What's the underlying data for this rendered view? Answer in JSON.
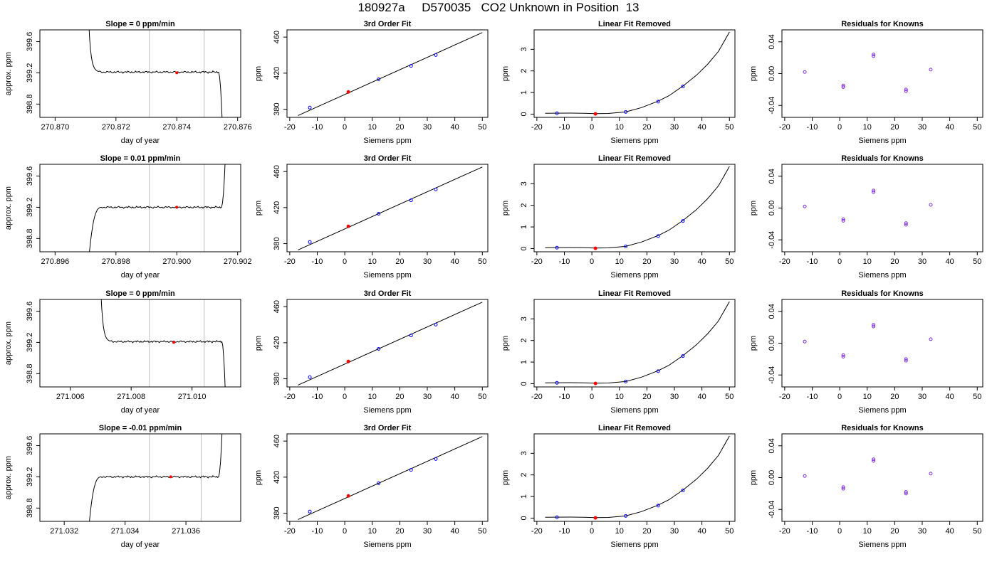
{
  "title": "180927a     D570035   CO2 Unknown in Position  13",
  "colors": {
    "line": "#000000",
    "known_point": "#0000ff",
    "unknown_point": "#ff0000",
    "residual_point": "#7b2be2",
    "marker_line": "#bebebe"
  },
  "chart_data": [
    {
      "type": "line",
      "title": "Slope =  0  ppm/min",
      "xlabel": "day of year",
      "ylabel": "approx. ppm",
      "xlim": [
        270.8695,
        270.8761
      ],
      "ylim": [
        398.63,
        399.75
      ],
      "xticks": [
        270.87,
        270.872,
        270.874,
        270.876
      ],
      "xtick_labels": [
        "270.870",
        "270.872",
        "270.874",
        "270.876"
      ],
      "yticks": [
        398.8,
        399.2,
        399.6
      ],
      "ytick_labels": [
        "398.8",
        "399.2",
        "399.6"
      ],
      "vlines": [
        270.8731,
        270.8749
      ],
      "trace_start": 270.8711,
      "trace_end": 270.8755,
      "level": 399.21,
      "start_from": 399.9,
      "end_to": 398.5,
      "marker": {
        "x": 270.874,
        "y": 399.2
      }
    },
    {
      "type": "scatter",
      "title": "3rd Order Fit",
      "xlabel": "Siemens ppm",
      "ylabel": "ppm",
      "xlim": [
        -21,
        52
      ],
      "ylim": [
        371,
        468
      ],
      "xticks": [
        -20,
        -10,
        0,
        10,
        20,
        30,
        40,
        50
      ],
      "xtick_labels": [
        "-20",
        "-10",
        "0",
        "10",
        "20",
        "30",
        "40",
        "50"
      ],
      "yticks": [
        380,
        420,
        460
      ],
      "ytick_labels": [
        "380",
        "420",
        "460"
      ],
      "fit_line": [
        [
          -17,
          373
        ],
        [
          50,
          465
        ]
      ],
      "known_points": [
        [
          -12.7,
          381.8
        ],
        [
          12.3,
          413.2
        ],
        [
          24.1,
          428.1
        ],
        [
          33.1,
          440.1
        ]
      ],
      "unknown_points": [
        [
          1.3,
          399.2
        ]
      ]
    },
    {
      "type": "scatter",
      "title": "Linear Fit Removed",
      "xlabel": "Siemens ppm",
      "ylabel": "ppm",
      "xlim": [
        -21,
        52
      ],
      "ylim": [
        -0.15,
        3.9
      ],
      "xticks": [
        -20,
        -10,
        0,
        10,
        20,
        30,
        40,
        50
      ],
      "xtick_labels": [
        "-20",
        "-10",
        "0",
        "10",
        "20",
        "30",
        "40",
        "50"
      ],
      "yticks": [
        0,
        1,
        2,
        3
      ],
      "ytick_labels": [
        "0",
        "1",
        "2",
        "3"
      ],
      "fit_curve": [
        [
          -17,
          0.04
        ],
        [
          -12.7,
          0.045
        ],
        [
          -8,
          0.048
        ],
        [
          -3,
          0.04
        ],
        [
          1.3,
          0.02
        ],
        [
          6,
          0.03
        ],
        [
          12.3,
          0.1
        ],
        [
          18,
          0.3
        ],
        [
          24.1,
          0.6
        ],
        [
          28,
          0.85
        ],
        [
          33.1,
          1.3
        ],
        [
          38,
          1.8
        ],
        [
          42,
          2.3
        ],
        [
          46,
          2.9
        ],
        [
          50,
          3.8
        ]
      ],
      "known_points": [
        [
          -12.7,
          0.04
        ],
        [
          12.3,
          0.1
        ],
        [
          24.1,
          0.58
        ],
        [
          33.1,
          1.28
        ]
      ],
      "unknown_points": [
        [
          1.3,
          0.01
        ]
      ]
    },
    {
      "type": "scatter",
      "title": "Residuals for Knowns",
      "xlabel": "Siemens ppm",
      "ylabel": "ppm",
      "xlim": [
        -21,
        52
      ],
      "ylim": [
        -0.055,
        0.055
      ],
      "xticks": [
        -20,
        -10,
        0,
        10,
        20,
        30,
        40,
        50
      ],
      "xtick_labels": [
        "-20",
        "-10",
        "0",
        "10",
        "20",
        "30",
        "40",
        "50"
      ],
      "yticks": [
        -0.04,
        0,
        0.04
      ],
      "ytick_labels": [
        "-0.04",
        "0.00",
        "0.04"
      ],
      "points": [
        [
          -12.7,
          0.002
        ],
        [
          1.3,
          -0.015
        ],
        [
          1.3,
          -0.017
        ],
        [
          12.3,
          0.022
        ],
        [
          12.3,
          0.024
        ],
        [
          24.1,
          -0.02
        ],
        [
          24.1,
          -0.022
        ],
        [
          33.1,
          0.005
        ]
      ]
    },
    {
      "type": "line",
      "title": "Slope =  0.01  ppm/min",
      "xlabel": "day of year",
      "ylabel": "approx. ppm",
      "xlim": [
        270.8955,
        270.9021
      ],
      "ylim": [
        398.63,
        399.75
      ],
      "xticks": [
        270.896,
        270.898,
        270.9,
        270.902
      ],
      "xtick_labels": [
        "270.896",
        "270.898",
        "270.900",
        "270.902"
      ],
      "yticks": [
        398.8,
        399.2,
        399.6
      ],
      "ytick_labels": [
        "398.8",
        "399.2",
        "399.6"
      ],
      "vlines": [
        270.8991,
        270.9009
      ],
      "trace_start": 270.8971,
      "trace_end": 270.9016,
      "level": 399.2,
      "start_from": 398.5,
      "end_to": 399.9,
      "marker": {
        "x": 270.9,
        "y": 399.2
      }
    },
    {
      "type": "scatter",
      "title": "3rd Order Fit",
      "xlabel": "Siemens ppm",
      "ylabel": "ppm",
      "xlim": [
        -21,
        52
      ],
      "ylim": [
        371,
        468
      ],
      "xticks": [
        -20,
        -10,
        0,
        10,
        20,
        30,
        40,
        50
      ],
      "xtick_labels": [
        "-20",
        "-10",
        "0",
        "10",
        "20",
        "30",
        "40",
        "50"
      ],
      "yticks": [
        380,
        420,
        460
      ],
      "ytick_labels": [
        "380",
        "420",
        "460"
      ],
      "fit_line": [
        [
          -17,
          373
        ],
        [
          50,
          465
        ]
      ],
      "known_points": [
        [
          -12.7,
          381.8
        ],
        [
          12.3,
          413.2
        ],
        [
          24.1,
          428.1
        ],
        [
          33.1,
          440.1
        ]
      ],
      "unknown_points": [
        [
          1.3,
          399.2
        ]
      ]
    },
    {
      "type": "scatter",
      "title": "Linear Fit Removed",
      "xlabel": "Siemens ppm",
      "ylabel": "ppm",
      "xlim": [
        -21,
        52
      ],
      "ylim": [
        -0.15,
        3.9
      ],
      "xticks": [
        -20,
        -10,
        0,
        10,
        20,
        30,
        40,
        50
      ],
      "xtick_labels": [
        "-20",
        "-10",
        "0",
        "10",
        "20",
        "30",
        "40",
        "50"
      ],
      "yticks": [
        0,
        1,
        2,
        3
      ],
      "ytick_labels": [
        "0",
        "1",
        "2",
        "3"
      ],
      "fit_curve": [
        [
          -17,
          0.04
        ],
        [
          -12.7,
          0.045
        ],
        [
          -8,
          0.048
        ],
        [
          -3,
          0.04
        ],
        [
          1.3,
          0.02
        ],
        [
          6,
          0.03
        ],
        [
          12.3,
          0.1
        ],
        [
          18,
          0.3
        ],
        [
          24.1,
          0.6
        ],
        [
          28,
          0.85
        ],
        [
          33.1,
          1.3
        ],
        [
          38,
          1.8
        ],
        [
          42,
          2.3
        ],
        [
          46,
          2.9
        ],
        [
          50,
          3.8
        ]
      ],
      "known_points": [
        [
          -12.7,
          0.04
        ],
        [
          12.3,
          0.1
        ],
        [
          24.1,
          0.58
        ],
        [
          33.1,
          1.28
        ]
      ],
      "unknown_points": [
        [
          1.3,
          0.01
        ]
      ]
    },
    {
      "type": "scatter",
      "title": "Residuals for Knowns",
      "xlabel": "Siemens ppm",
      "ylabel": "ppm",
      "xlim": [
        -21,
        52
      ],
      "ylim": [
        -0.055,
        0.055
      ],
      "xticks": [
        -20,
        -10,
        0,
        10,
        20,
        30,
        40,
        50
      ],
      "xtick_labels": [
        "-20",
        "-10",
        "0",
        "10",
        "20",
        "30",
        "40",
        "50"
      ],
      "yticks": [
        -0.04,
        0,
        0.04
      ],
      "ytick_labels": [
        "-0.04",
        "0.00",
        "0.04"
      ],
      "points": [
        [
          -12.7,
          0.002
        ],
        [
          1.3,
          -0.014
        ],
        [
          1.3,
          -0.016
        ],
        [
          12.3,
          0.02
        ],
        [
          12.3,
          0.022
        ],
        [
          24.1,
          -0.019
        ],
        [
          24.1,
          -0.021
        ],
        [
          33.1,
          0.004
        ]
      ]
    },
    {
      "type": "line",
      "title": "Slope =  0  ppm/min",
      "xlabel": "day of year",
      "ylabel": "approx. ppm",
      "xlim": [
        271.005,
        271.0116
      ],
      "ylim": [
        398.63,
        399.75
      ],
      "xticks": [
        271.006,
        271.008,
        271.01
      ],
      "xtick_labels": [
        "271.006",
        "271.008",
        "271.010"
      ],
      "vlines": [
        271.0086,
        271.0104
      ],
      "trace_start": 271.007,
      "trace_end": 271.0111,
      "level": 399.21,
      "yticks": [
        398.8,
        399.2,
        399.6
      ],
      "ytick_labels": [
        "398.8",
        "399.2",
        "399.6"
      ],
      "start_from": 399.9,
      "end_to": 398.5,
      "marker": {
        "x": 271.0094,
        "y": 399.2
      }
    },
    {
      "type": "scatter",
      "title": "3rd Order Fit",
      "xlabel": "Siemens ppm",
      "ylabel": "ppm",
      "xlim": [
        -21,
        52
      ],
      "ylim": [
        371,
        468
      ],
      "xticks": [
        -20,
        -10,
        0,
        10,
        20,
        30,
        40,
        50
      ],
      "xtick_labels": [
        "-20",
        "-10",
        "0",
        "10",
        "20",
        "30",
        "40",
        "50"
      ],
      "yticks": [
        380,
        420,
        460
      ],
      "ytick_labels": [
        "380",
        "420",
        "460"
      ],
      "fit_line": [
        [
          -17,
          373
        ],
        [
          50,
          465
        ]
      ],
      "known_points": [
        [
          -12.7,
          381.8
        ],
        [
          12.3,
          413.2
        ],
        [
          24.1,
          428.1
        ],
        [
          33.1,
          440.1
        ]
      ],
      "unknown_points": [
        [
          1.3,
          399.2
        ]
      ]
    },
    {
      "type": "scatter",
      "title": "Linear Fit Removed",
      "xlabel": "Siemens ppm",
      "ylabel": "ppm",
      "xlim": [
        -21,
        52
      ],
      "ylim": [
        -0.15,
        3.9
      ],
      "xticks": [
        -20,
        -10,
        0,
        10,
        20,
        30,
        40,
        50
      ],
      "xtick_labels": [
        "-20",
        "-10",
        "0",
        "10",
        "20",
        "30",
        "40",
        "50"
      ],
      "yticks": [
        0,
        1,
        2,
        3
      ],
      "ytick_labels": [
        "0",
        "1",
        "2",
        "3"
      ],
      "fit_curve": [
        [
          -17,
          0.04
        ],
        [
          -12.7,
          0.045
        ],
        [
          -8,
          0.048
        ],
        [
          -3,
          0.04
        ],
        [
          1.3,
          0.02
        ],
        [
          6,
          0.03
        ],
        [
          12.3,
          0.1
        ],
        [
          18,
          0.3
        ],
        [
          24.1,
          0.6
        ],
        [
          28,
          0.85
        ],
        [
          33.1,
          1.3
        ],
        [
          38,
          1.8
        ],
        [
          42,
          2.3
        ],
        [
          46,
          2.9
        ],
        [
          50,
          3.8
        ]
      ],
      "known_points": [
        [
          -12.7,
          0.04
        ],
        [
          12.3,
          0.1
        ],
        [
          24.1,
          0.58
        ],
        [
          33.1,
          1.28
        ]
      ],
      "unknown_points": [
        [
          1.3,
          0.01
        ]
      ]
    },
    {
      "type": "scatter",
      "title": "Residuals for Knowns",
      "xlabel": "Siemens ppm",
      "ylabel": "ppm",
      "xlim": [
        -21,
        52
      ],
      "ylim": [
        -0.055,
        0.055
      ],
      "xticks": [
        -20,
        -10,
        0,
        10,
        20,
        30,
        40,
        50
      ],
      "xtick_labels": [
        "-20",
        "-10",
        "0",
        "10",
        "20",
        "30",
        "40",
        "50"
      ],
      "yticks": [
        -0.04,
        0,
        0.04
      ],
      "ytick_labels": [
        "-0.04",
        "0.00",
        "0.04"
      ],
      "points": [
        [
          -12.7,
          0.002
        ],
        [
          1.3,
          -0.015
        ],
        [
          1.3,
          -0.017
        ],
        [
          12.3,
          0.021
        ],
        [
          12.3,
          0.023
        ],
        [
          24.1,
          -0.02
        ],
        [
          24.1,
          -0.022
        ],
        [
          33.1,
          0.005
        ]
      ]
    },
    {
      "type": "line",
      "title": "Slope =  -0.01  ppm/min",
      "xlabel": "day of year",
      "ylabel": "approx. ppm",
      "xlim": [
        271.0312,
        271.0378
      ],
      "ylim": [
        398.63,
        399.75
      ],
      "xticks": [
        271.032,
        271.034,
        271.036
      ],
      "xtick_labels": [
        "271.032",
        "271.034",
        "271.036"
      ],
      "yticks": [
        398.8,
        399.2,
        399.6
      ],
      "ytick_labels": [
        "398.8",
        "399.2",
        "399.6"
      ],
      "vlines": [
        271.0348,
        271.0365
      ],
      "trace_start": 271.0328,
      "trace_end": 271.0372,
      "level": 399.2,
      "start_from": 398.5,
      "end_to": 399.9,
      "marker": {
        "x": 271.0355,
        "y": 399.2
      }
    },
    {
      "type": "scatter",
      "title": "3rd Order Fit",
      "xlabel": "Siemens ppm",
      "ylabel": "ppm",
      "xlim": [
        -21,
        52
      ],
      "ylim": [
        371,
        468
      ],
      "xticks": [
        -20,
        -10,
        0,
        10,
        20,
        30,
        40,
        50
      ],
      "xtick_labels": [
        "-20",
        "-10",
        "0",
        "10",
        "20",
        "30",
        "40",
        "50"
      ],
      "yticks": [
        380,
        420,
        460
      ],
      "ytick_labels": [
        "380",
        "420",
        "460"
      ],
      "fit_line": [
        [
          -17,
          373
        ],
        [
          50,
          465
        ]
      ],
      "known_points": [
        [
          -12.7,
          381.8
        ],
        [
          12.3,
          413.2
        ],
        [
          24.1,
          428.1
        ],
        [
          33.1,
          440.1
        ]
      ],
      "unknown_points": [
        [
          1.3,
          399.2
        ]
      ]
    },
    {
      "type": "scatter",
      "title": "Linear Fit Removed",
      "xlabel": "Siemens ppm",
      "ylabel": "ppm",
      "xlim": [
        -21,
        52
      ],
      "ylim": [
        -0.15,
        3.9
      ],
      "xticks": [
        -20,
        -10,
        0,
        10,
        20,
        30,
        40,
        50
      ],
      "xtick_labels": [
        "-20",
        "-10",
        "0",
        "10",
        "20",
        "30",
        "40",
        "50"
      ],
      "yticks": [
        0,
        1,
        2,
        3
      ],
      "ytick_labels": [
        "0",
        "1",
        "2",
        "3"
      ],
      "fit_curve": [
        [
          -17,
          0.04
        ],
        [
          -12.7,
          0.045
        ],
        [
          -8,
          0.048
        ],
        [
          -3,
          0.04
        ],
        [
          1.3,
          0.02
        ],
        [
          6,
          0.03
        ],
        [
          12.3,
          0.1
        ],
        [
          18,
          0.3
        ],
        [
          24.1,
          0.6
        ],
        [
          28,
          0.85
        ],
        [
          33.1,
          1.3
        ],
        [
          38,
          1.8
        ],
        [
          42,
          2.3
        ],
        [
          46,
          2.9
        ],
        [
          50,
          3.8
        ]
      ],
      "known_points": [
        [
          -12.7,
          0.04
        ],
        [
          12.3,
          0.1
        ],
        [
          24.1,
          0.58
        ],
        [
          33.1,
          1.28
        ]
      ],
      "unknown_points": [
        [
          1.3,
          0.01
        ]
      ]
    },
    {
      "type": "scatter",
      "title": "Residuals for Knowns",
      "xlabel": "Siemens ppm",
      "ylabel": "ppm",
      "xlim": [
        -21,
        52
      ],
      "ylim": [
        -0.055,
        0.055
      ],
      "xticks": [
        -20,
        -10,
        0,
        10,
        20,
        30,
        40,
        50
      ],
      "xtick_labels": [
        "-20",
        "-10",
        "0",
        "10",
        "20",
        "30",
        "40",
        "50"
      ],
      "yticks": [
        -0.04,
        0,
        0.04
      ],
      "ytick_labels": [
        "-0.04",
        "0.00",
        "0.04"
      ],
      "points": [
        [
          -12.7,
          0.002
        ],
        [
          1.3,
          -0.012
        ],
        [
          1.3,
          -0.014
        ],
        [
          12.3,
          0.021
        ],
        [
          12.3,
          0.023
        ],
        [
          24.1,
          -0.018
        ],
        [
          24.1,
          -0.02
        ],
        [
          33.1,
          0.005
        ]
      ]
    }
  ]
}
